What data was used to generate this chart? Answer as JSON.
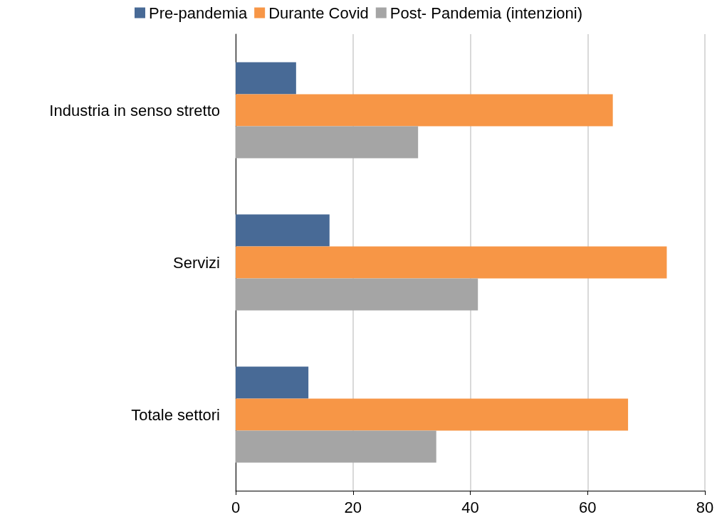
{
  "chart_data": {
    "type": "bar",
    "orientation": "horizontal",
    "categories": [
      "Industria in senso stretto",
      "Servizi",
      "Totale settori"
    ],
    "series": [
      {
        "name": "Pre-pandemia",
        "color": "#486a96",
        "values": [
          10.3,
          16.0,
          12.4
        ]
      },
      {
        "name": "Durante Covid",
        "color": "#f79646",
        "values": [
          64.3,
          73.5,
          66.9
        ]
      },
      {
        "name": "Post- Pandemia (intenzioni)",
        "color": "#a5a5a5",
        "values": [
          31.1,
          41.3,
          34.2
        ]
      }
    ],
    "xlim": [
      0,
      80
    ],
    "xticks": [
      0,
      20,
      40,
      60,
      80
    ],
    "grid": "x",
    "legend": "top"
  }
}
